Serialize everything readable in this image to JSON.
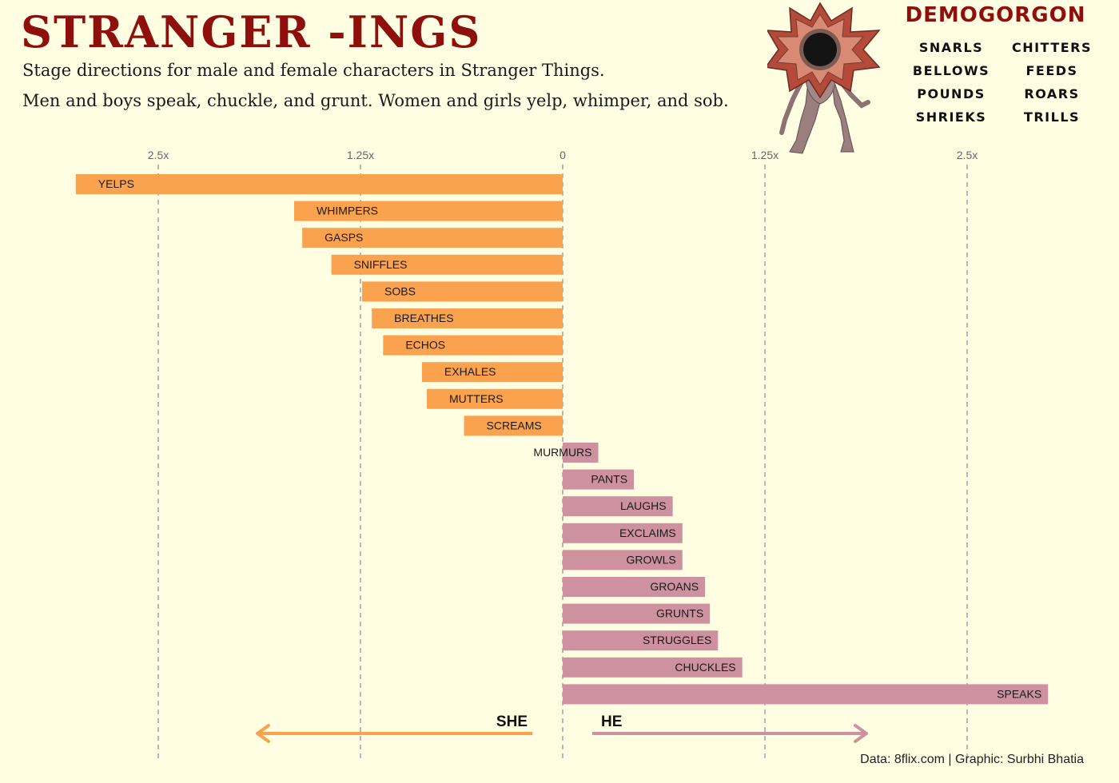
{
  "header": {
    "title": "STRANGER -INGS",
    "subtitle_1": "Stage directions for male and female characters in Stranger Things.",
    "subtitle_2": "Men and boys speak, chuckle, and grunt. Women and girls yelp, whimper, and sob."
  },
  "demogorgon": {
    "title": "DEMOGORGON",
    "words": [
      "SNARLS",
      "CHITTERS",
      "BELLOWS",
      "FEEDS",
      "POUNDS",
      "ROARS",
      "SHRIEKS",
      "TRILLS"
    ]
  },
  "footer": "Data: 8flix.com | Graphic: Surbhi Bhatia",
  "chart_data": {
    "type": "bar",
    "orientation": "horizontal-diverging",
    "x_ticks": [
      "2.5x",
      "1.25x",
      "0",
      "1.25x",
      "2.5x"
    ],
    "tick_values": [
      -2.5,
      -1.25,
      0,
      1.25,
      2.5
    ],
    "xlim": [
      -3.0,
      3.0
    ],
    "grid": true,
    "direction_labels": {
      "left": "SHE",
      "right": "HE"
    },
    "colors": {
      "she": "#fba24e",
      "he": "#cd919f",
      "grid": "#a9a9a9"
    },
    "bars": [
      {
        "label": "YELPS",
        "value": -3.01,
        "group": "she"
      },
      {
        "label": "WHIMPERS",
        "value": -1.66,
        "group": "she"
      },
      {
        "label": "GASPS",
        "value": -1.61,
        "group": "she"
      },
      {
        "label": "SNIFFLES",
        "value": -1.43,
        "group": "she"
      },
      {
        "label": "SOBS",
        "value": -1.24,
        "group": "she"
      },
      {
        "label": "BREATHES",
        "value": -1.18,
        "group": "she"
      },
      {
        "label": "ECHOS",
        "value": -1.11,
        "group": "she"
      },
      {
        "label": "EXHALES",
        "value": -0.87,
        "group": "she"
      },
      {
        "label": "MUTTERS",
        "value": -0.84,
        "group": "she"
      },
      {
        "label": "SCREAMS",
        "value": -0.61,
        "group": "she"
      },
      {
        "label": "MURMURS",
        "value": 0.22,
        "group": "he"
      },
      {
        "label": "PANTS",
        "value": 0.44,
        "group": "he"
      },
      {
        "label": "LAUGHS",
        "value": 0.68,
        "group": "he"
      },
      {
        "label": "EXCLAIMS",
        "value": 0.74,
        "group": "he"
      },
      {
        "label": "GROWLS",
        "value": 0.74,
        "group": "he"
      },
      {
        "label": "GROANS",
        "value": 0.88,
        "group": "he"
      },
      {
        "label": "GRUNTS",
        "value": 0.91,
        "group": "he"
      },
      {
        "label": "STRUGGLES",
        "value": 0.96,
        "group": "he"
      },
      {
        "label": "CHUCKLES",
        "value": 1.11,
        "group": "he"
      },
      {
        "label": "SPEAKS",
        "value": 3.0,
        "group": "he"
      }
    ]
  }
}
